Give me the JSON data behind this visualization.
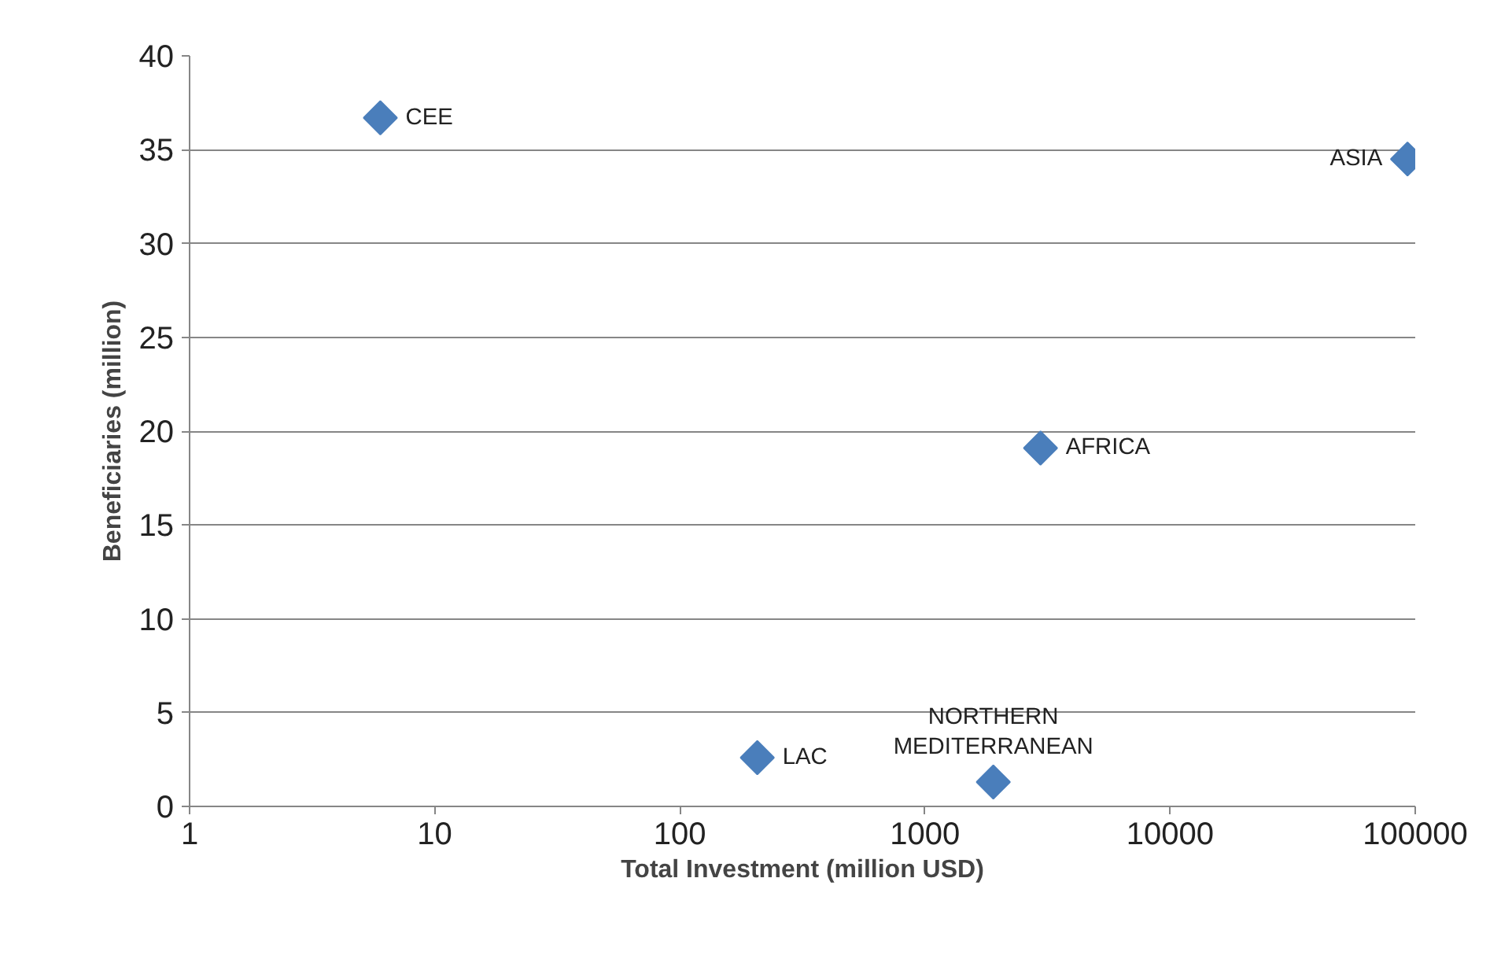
{
  "chart_data": {
    "type": "scatter",
    "xlabel": "Total Investment (million USD)",
    "ylabel": "Beneficiaries (million)",
    "x": [
      6,
      93000,
      2960,
      207,
      1900
    ],
    "series": [
      {
        "color": "#4a7ebb",
        "values": [
          36.7,
          34.5,
          19.1,
          2.6,
          1.3
        ]
      }
    ],
    "annotations": [
      {
        "text": "CEE",
        "x": 6,
        "y": 36.7
      },
      {
        "text": "ASIA",
        "x": 93000,
        "y": 34.5
      },
      {
        "text": "AFRICA",
        "x": 2960,
        "y": 19.1
      },
      {
        "text": "LAC",
        "x": 207,
        "y": 2.6
      },
      {
        "text": "NORTHERN\nMEDITERRANEAN",
        "x": 1900,
        "y": 1.3
      }
    ],
    "log": "x",
    "xlim": [
      1,
      100000
    ],
    "xticks": [
      1,
      10,
      100,
      1000,
      10000,
      100000
    ],
    "ylim": [
      0,
      40
    ],
    "yticks": [
      0,
      5,
      10,
      15,
      20,
      25,
      30,
      35,
      40
    ],
    "grid": "y",
    "marker": "diamond"
  }
}
